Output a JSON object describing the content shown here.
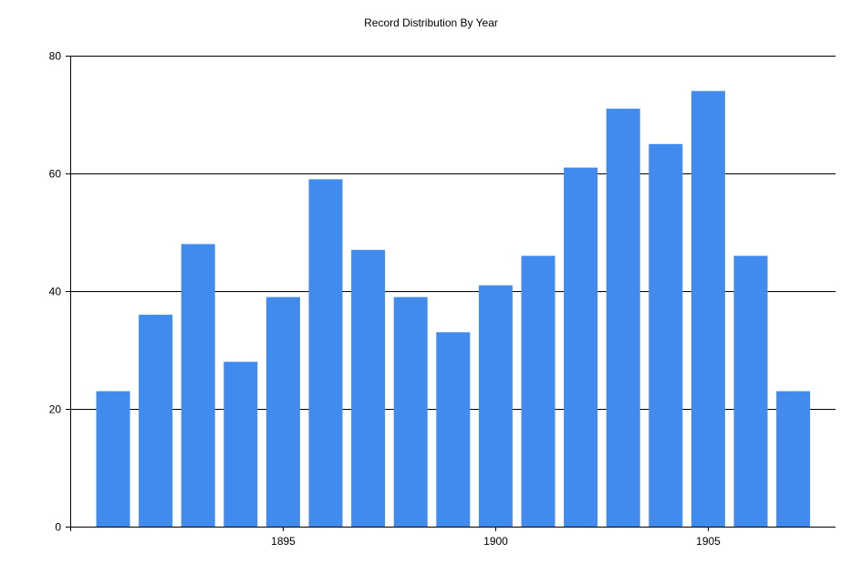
{
  "chart_data": {
    "type": "bar",
    "title": "Record Distribution By Year",
    "xlabel": "",
    "ylabel": "",
    "categories": [
      1891,
      1892,
      1893,
      1894,
      1895,
      1896,
      1897,
      1898,
      1899,
      1900,
      1901,
      1902,
      1903,
      1904,
      1905,
      1906,
      1907
    ],
    "values": [
      23,
      36,
      48,
      28,
      39,
      59,
      47,
      39,
      33,
      41,
      46,
      61,
      71,
      65,
      74,
      46,
      23
    ],
    "ylim": [
      0,
      80
    ],
    "y_ticks": [
      0,
      20,
      40,
      60,
      80
    ],
    "x_ticks": [
      1895,
      1900,
      1905
    ],
    "grid": "horizontal",
    "bar_color": "#428bee",
    "axis_color": "#000000"
  }
}
